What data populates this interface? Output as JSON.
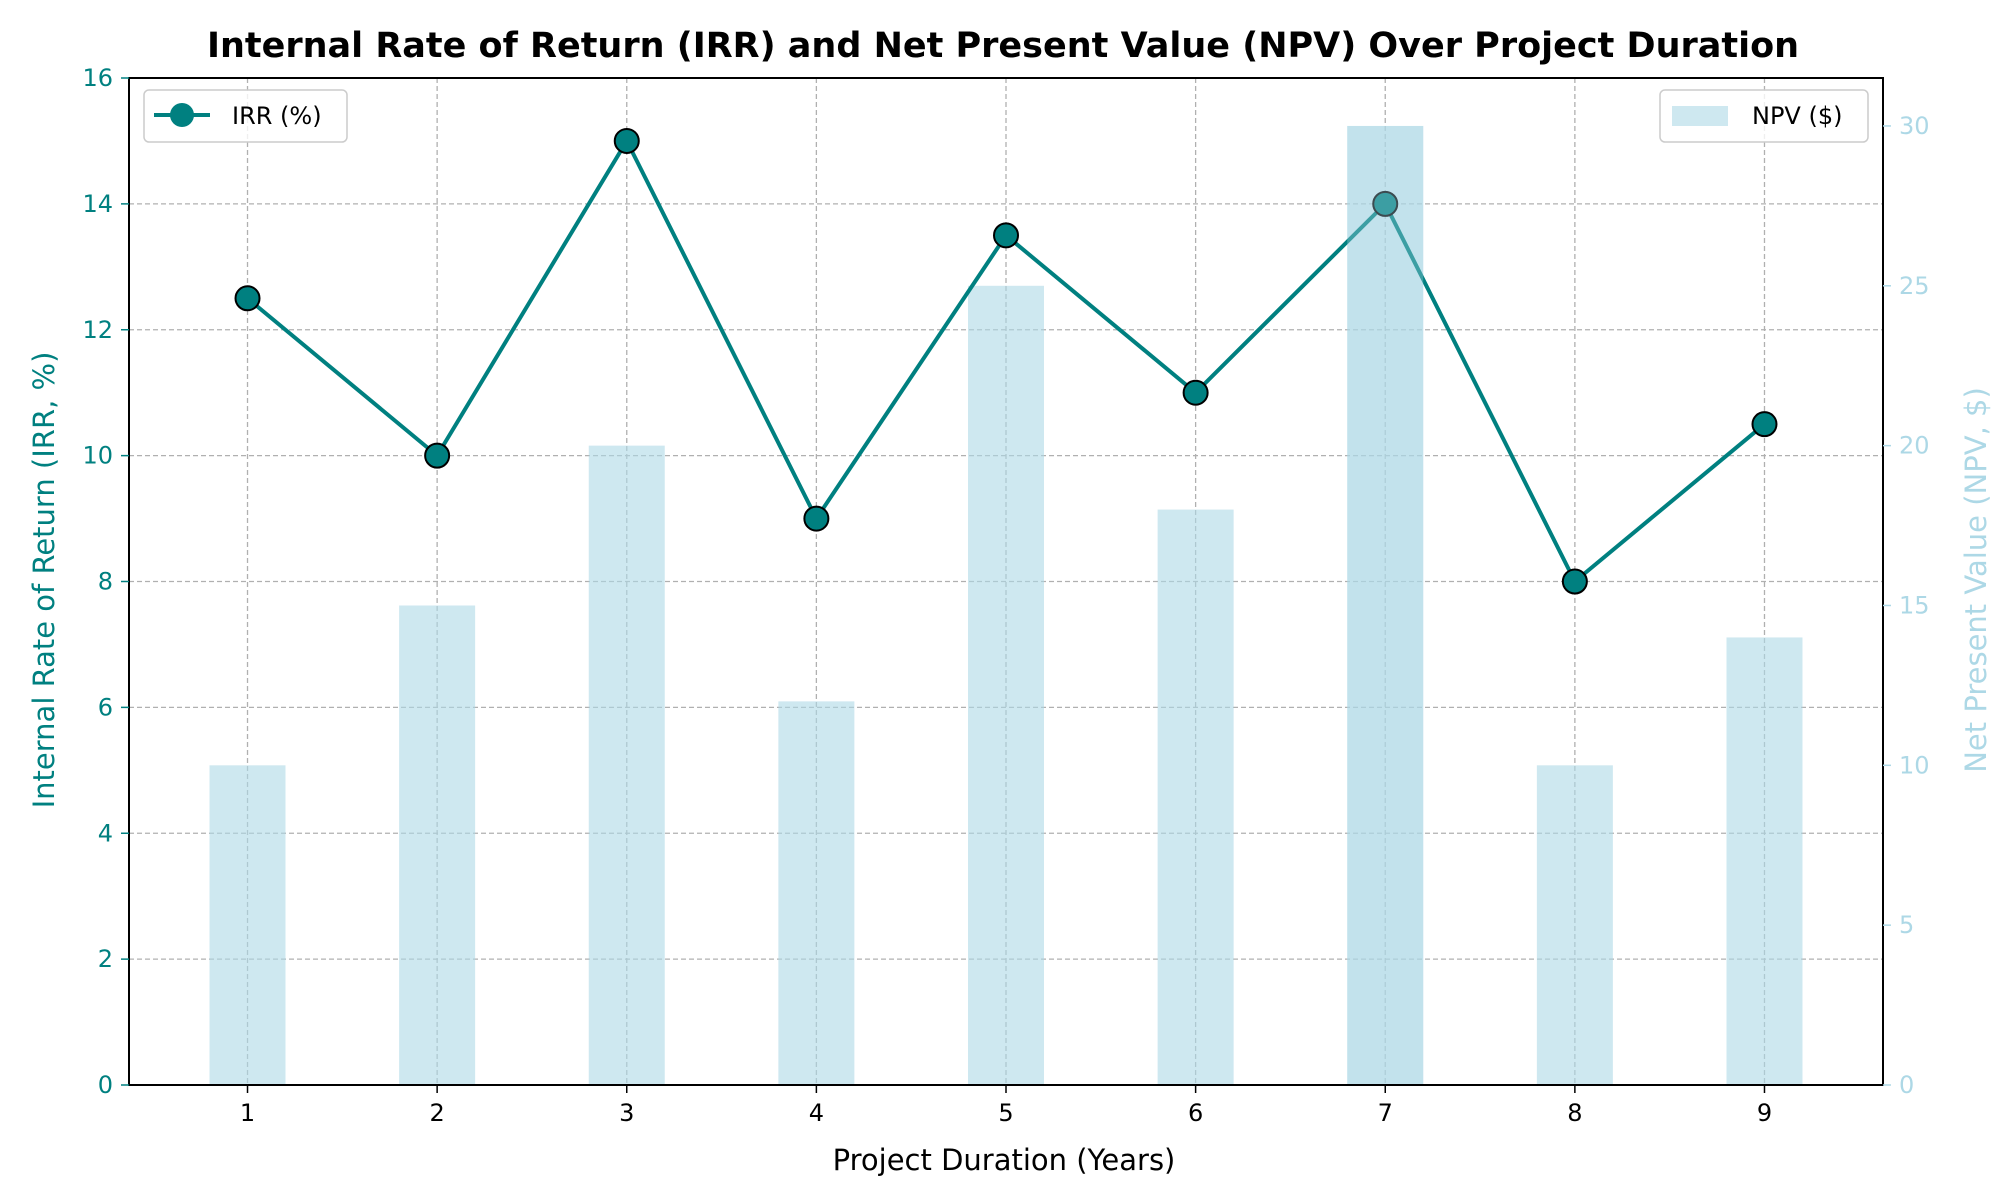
{
  "chart_data": {
    "type": "bar+line",
    "title": "Internal Rate of Return (IRR) and Net Present Value (NPV) Over Project Duration",
    "xlabel": "Project Duration (Years)",
    "ylabel_left": "Internal Rate of Return (IRR, %)",
    "ylabel_right": "Net Present Value (NPV, $)",
    "x": [
      1,
      2,
      3,
      4,
      5,
      6,
      7,
      8,
      9
    ],
    "ylim_left": [
      0,
      16
    ],
    "yticks_left": [
      0,
      2,
      4,
      6,
      8,
      10,
      12,
      14,
      16
    ],
    "ylim_right": [
      0,
      31.5
    ],
    "yticks_right": [
      0,
      5,
      10,
      15,
      20,
      25,
      30
    ],
    "grid": true,
    "series": [
      {
        "name": "IRR (%)",
        "kind": "line",
        "axis": "left",
        "values": [
          12.5,
          10,
          15,
          9,
          13.5,
          11,
          14,
          8,
          10.5
        ],
        "color": "#008080",
        "legend_placement": "top-left"
      },
      {
        "name": "NPV ($)",
        "kind": "bar",
        "axis": "right",
        "values": [
          10,
          15,
          20,
          12,
          25,
          18,
          30,
          10,
          14
        ],
        "color": "#add8e6",
        "legend_placement": "top-right"
      }
    ],
    "colors": {
      "left_axis": "#008080",
      "right_axis": "#add8e6",
      "grid": "#b0b0b0"
    }
  }
}
